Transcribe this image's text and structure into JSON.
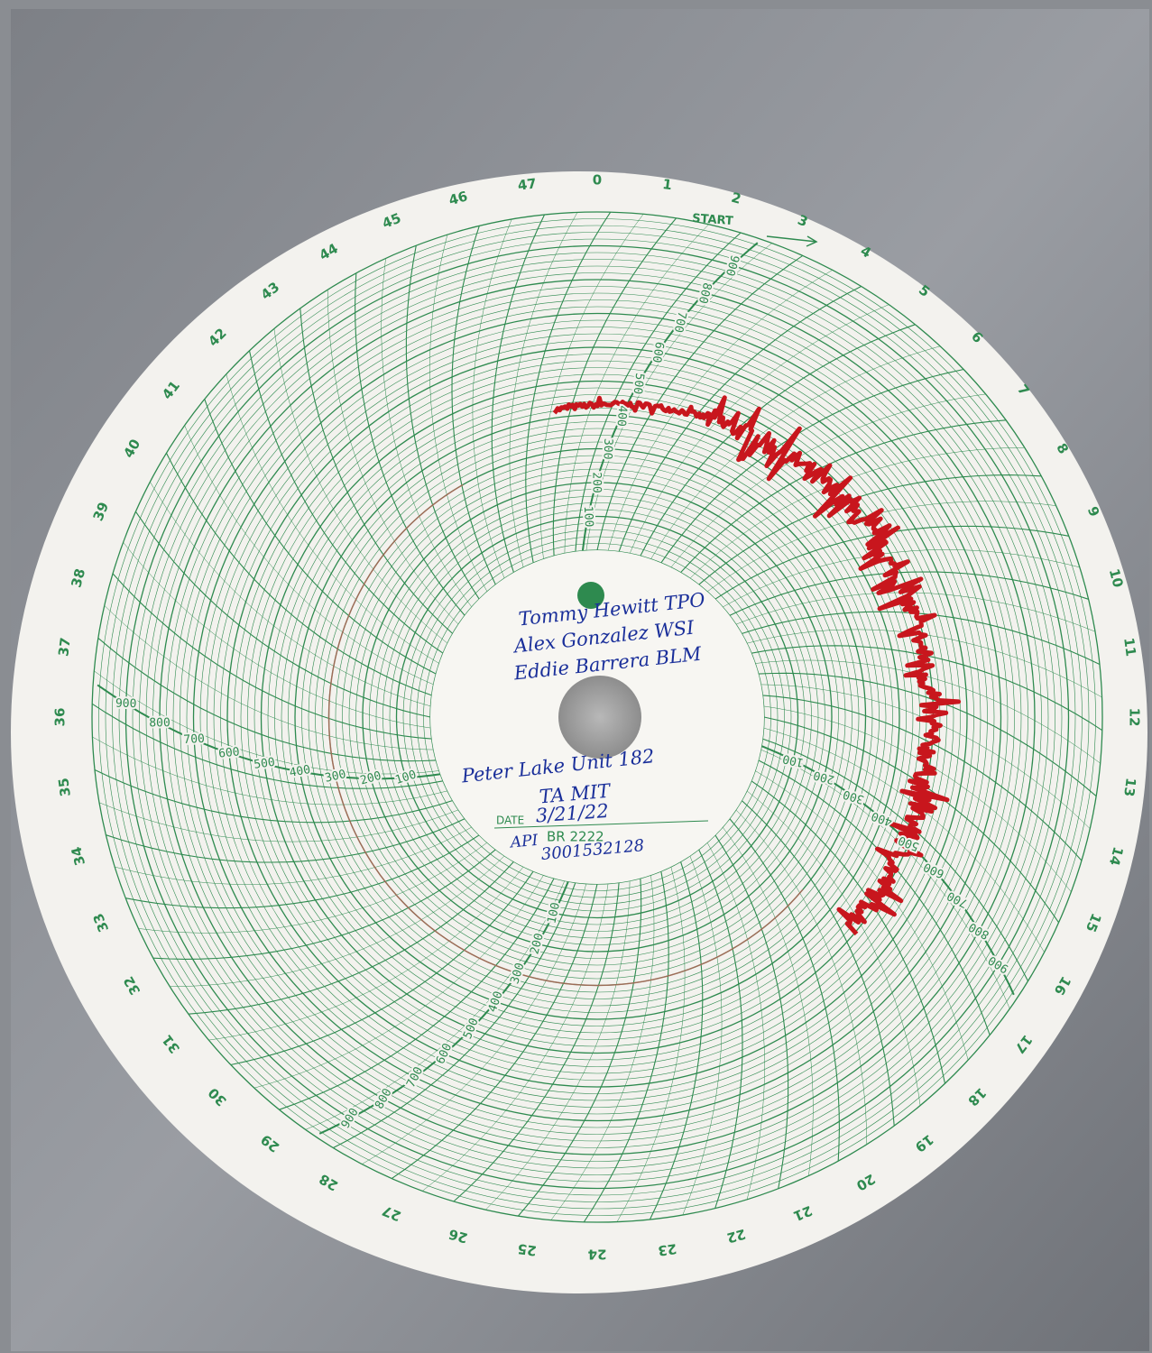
{
  "chart_paper": {
    "start_label": "START",
    "pressure_labels": [
      100,
      200,
      300,
      400,
      500,
      600,
      700,
      800,
      900
    ],
    "hour_labels": [
      0,
      1,
      2,
      3,
      4,
      5,
      6,
      7,
      8,
      9,
      10,
      11,
      12,
      13,
      14,
      15,
      16,
      17,
      18,
      19,
      20,
      21,
      22,
      23,
      24,
      25,
      26,
      27,
      28,
      29,
      30,
      31,
      32,
      33,
      34,
      35,
      36,
      37,
      38,
      39,
      40,
      41,
      42,
      43,
      44,
      45,
      46,
      47
    ],
    "center_label": {
      "names": [
        "Tommy Hewitt TPO",
        "Alex Gonzalez WSI",
        "Eddie Barrera BLM"
      ],
      "location": "Peter Lake Unit 182",
      "test": "TA MIT",
      "date_label": "DATE",
      "date": "3/21/22",
      "br": "BR 2222",
      "api_label": "API",
      "api": "3001532128"
    }
  }
}
